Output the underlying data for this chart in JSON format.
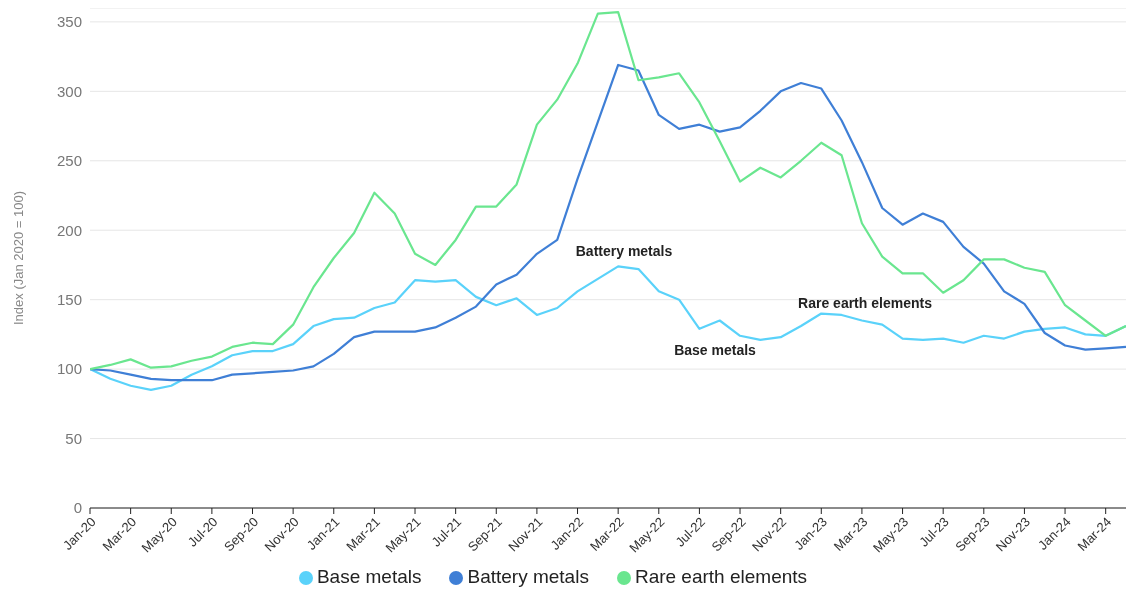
{
  "chart_data": {
    "type": "line",
    "ylabel": "Index (Jan 2020 = 100)",
    "categories": [
      "Jan-20",
      null,
      "Mar-20",
      null,
      "May-20",
      null,
      "Jul-20",
      null,
      "Sep-20",
      null,
      "Nov-20",
      null,
      "Jan-21",
      null,
      "Mar-21",
      null,
      "May-21",
      null,
      "Jul-21",
      null,
      "Sep-21",
      null,
      "Nov-21",
      null,
      "Jan-22",
      null,
      "Mar-22",
      null,
      "May-22",
      null,
      "Jul-22",
      null,
      "Sep-22",
      null,
      "Nov-22",
      null,
      "Jan-23",
      null,
      "Mar-23",
      null,
      "May-23",
      null,
      "Jul-23",
      null,
      "Sep-23",
      null,
      "Nov-23",
      null,
      "Jan-24",
      null,
      "Mar-24",
      null
    ],
    "series": [
      {
        "name": "Base metals",
        "color": "#5ad2fa",
        "values": [
          100,
          93,
          88,
          85,
          88,
          96,
          102,
          110,
          113,
          113,
          118,
          131,
          136,
          137,
          144,
          148,
          164,
          163,
          164,
          152,
          146,
          151,
          139,
          144,
          156,
          165,
          174,
          172,
          156,
          150,
          129,
          135,
          124,
          121,
          123,
          131,
          140,
          139,
          135,
          132,
          122,
          121,
          122,
          119,
          124,
          122,
          127,
          129,
          130,
          125,
          124,
          131
        ]
      },
      {
        "name": "Battery metals",
        "color": "#3f7fd6",
        "values": [
          100,
          99,
          96,
          93,
          92,
          92,
          92,
          96,
          97,
          98,
          99,
          102,
          111,
          123,
          127,
          127,
          127,
          130,
          137,
          145,
          161,
          168,
          183,
          193,
          237,
          278,
          319,
          315,
          283,
          273,
          276,
          271,
          274,
          286,
          300,
          306,
          302,
          279,
          249,
          216,
          204,
          212,
          206,
          188,
          176,
          156,
          147,
          126,
          117,
          114,
          115,
          116
        ]
      },
      {
        "name": "Rare earth elements",
        "color": "#6ae68f",
        "values": [
          100,
          103,
          107,
          101,
          102,
          106,
          109,
          116,
          119,
          118,
          132,
          159,
          180,
          198,
          227,
          212,
          183,
          175,
          193,
          217,
          217,
          233,
          276,
          294,
          320,
          356,
          357,
          308,
          310,
          313,
          292,
          264,
          235,
          245,
          238,
          250,
          263,
          254,
          205,
          181,
          169,
          169,
          155,
          164,
          179,
          179,
          173,
          170,
          146,
          135,
          124,
          131
        ]
      }
    ],
    "ylim": [
      0,
      360
    ],
    "yticks": [
      0,
      50,
      100,
      150,
      200,
      250,
      300,
      350
    ],
    "grid": "y",
    "legend": "bottom",
    "marker": "none",
    "line_style": "solid",
    "annotations": [
      "Battery metals",
      "Rare earth elements",
      "Base metals"
    ]
  }
}
